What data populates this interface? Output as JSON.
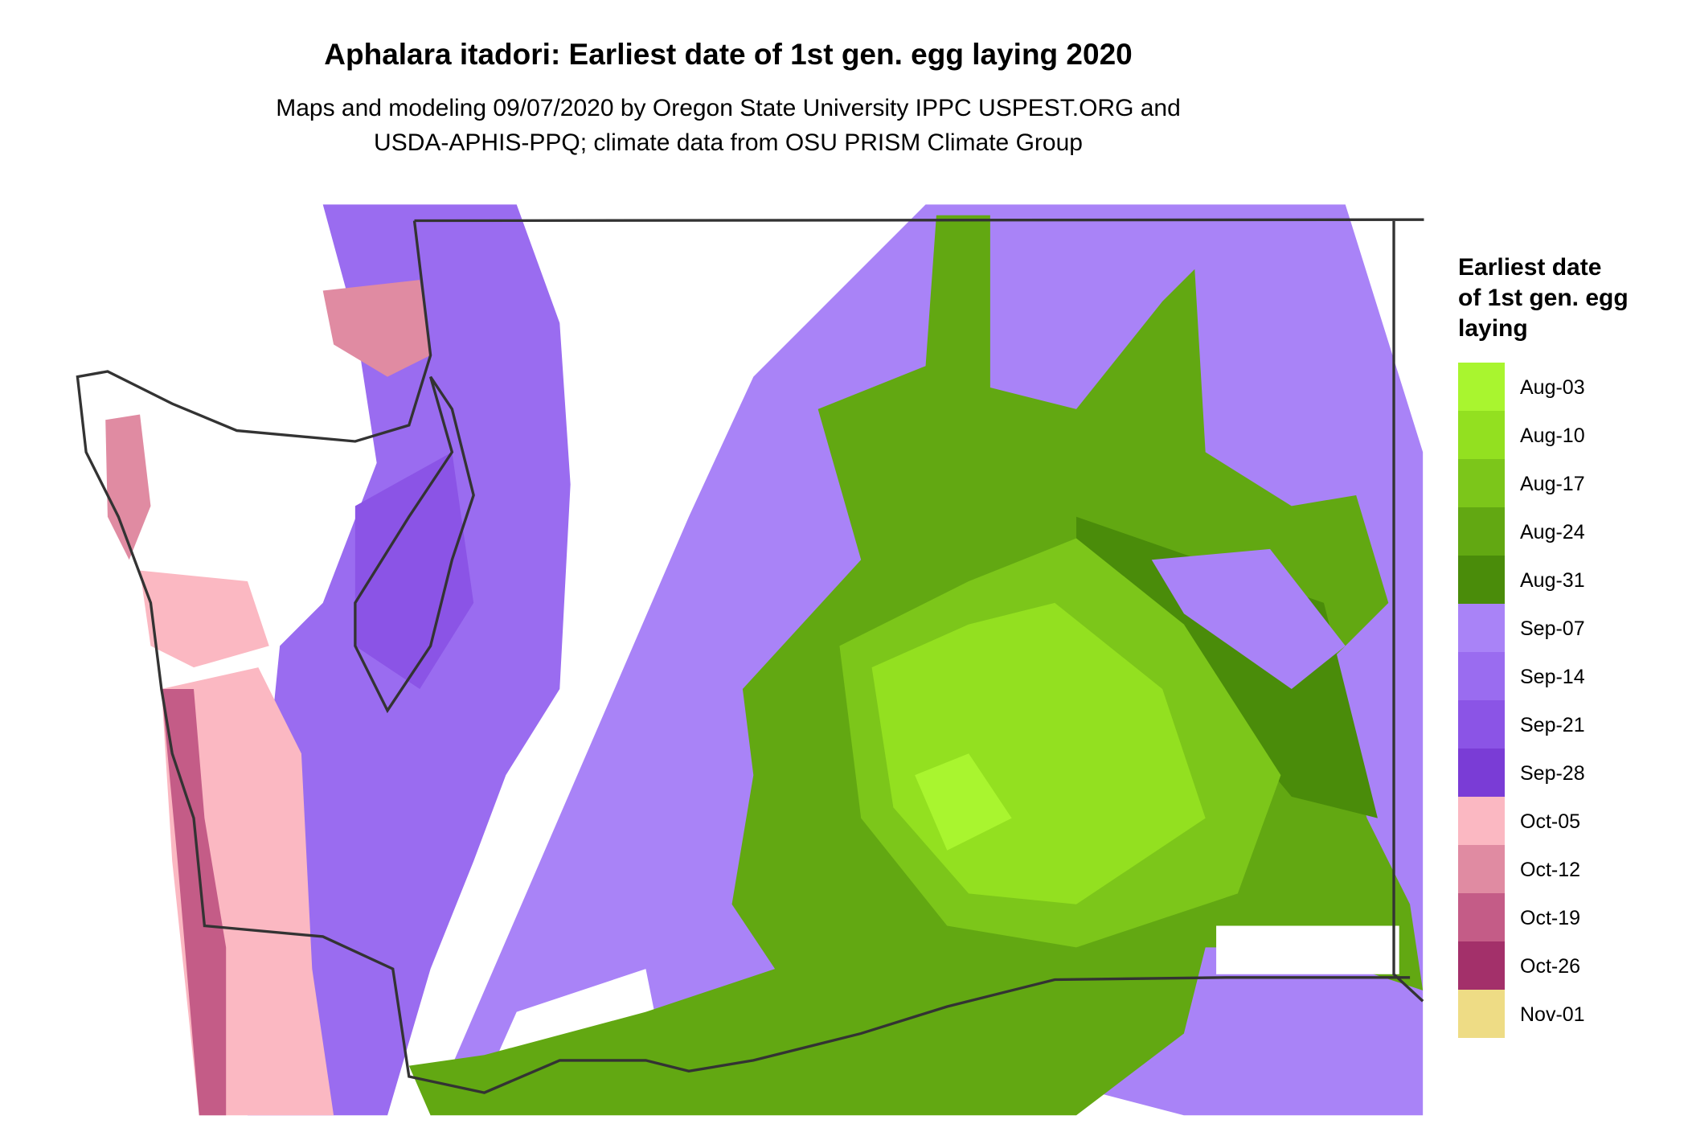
{
  "title": "Aphalara itadori: Earliest date of 1st gen. egg laying 2020",
  "subtitle": [
    "Maps and modeling 09/07/2020 by Oregon State University IPPC USPEST.ORG and",
    "USDA-APHIS-PPQ; climate data from OSU PRISM Climate Group"
  ],
  "legend": {
    "title": [
      "Earliest date",
      "of 1st gen. egg",
      "laying"
    ],
    "entries": [
      {
        "label": "Aug-03",
        "color": "#a9f52f"
      },
      {
        "label": "Aug-10",
        "color": "#93e020"
      },
      {
        "label": "Aug-17",
        "color": "#7cc61a"
      },
      {
        "label": "Aug-24",
        "color": "#62a812"
      },
      {
        "label": "Aug-31",
        "color": "#4a8c0a"
      },
      {
        "label": "Sep-07",
        "color": "#a983f7"
      },
      {
        "label": "Sep-14",
        "color": "#9a6cf0"
      },
      {
        "label": "Sep-21",
        "color": "#8b54e6"
      },
      {
        "label": "Sep-28",
        "color": "#7a3cd6"
      },
      {
        "label": "Oct-05",
        "color": "#fbb8c2"
      },
      {
        "label": "Oct-12",
        "color": "#e08ba2"
      },
      {
        "label": "Oct-19",
        "color": "#c45c87"
      },
      {
        "label": "Oct-26",
        "color": "#a3306a"
      },
      {
        "label": "Nov-01",
        "color": "#eedc85"
      }
    ]
  }
}
